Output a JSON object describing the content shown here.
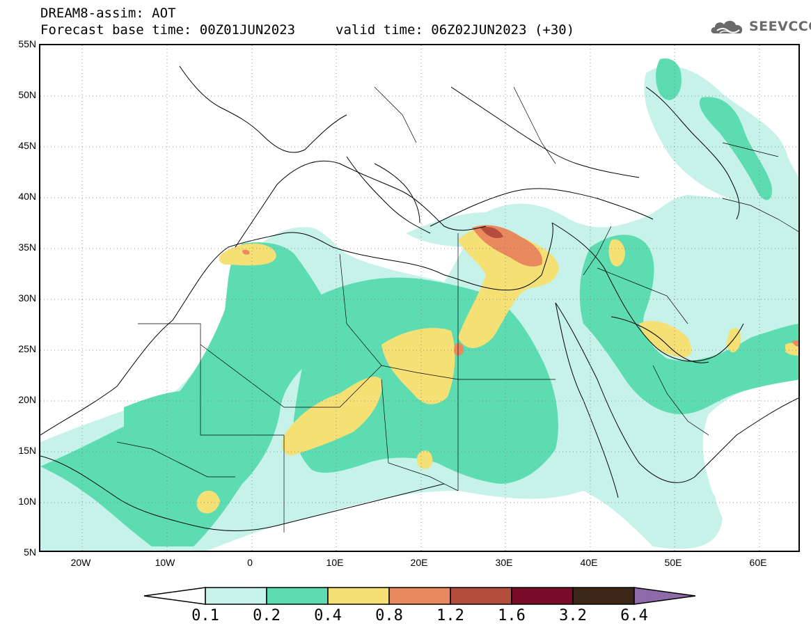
{
  "header": {
    "title_line1": "DREAM8-assim: AOT",
    "title_line2": "Forecast base time: 00Z01JUN2023",
    "valid_time": "valid time: 06Z02JUN2023 (+30)"
  },
  "logo": {
    "text": "SEEVCCC",
    "icon": "cloud-icon"
  },
  "map": {
    "lat_labels": [
      "55N",
      "50N",
      "45N",
      "40N",
      "35N",
      "30N",
      "25N",
      "20N",
      "15N",
      "10N",
      "5N"
    ],
    "lon_labels": [
      "20W",
      "10W",
      "0",
      "10E",
      "20E",
      "30E",
      "40E",
      "50E",
      "60E"
    ],
    "lat_range": [
      5,
      55
    ],
    "lon_range": [
      -25,
      65
    ],
    "grid": "dotted"
  },
  "colorbar": {
    "labels": [
      "0.1",
      "0.2",
      "0.4",
      "0.8",
      "1.2",
      "1.6",
      "3.2",
      "6.4"
    ],
    "colors": [
      "#c6f2ea",
      "#5ddcb2",
      "#f5e076",
      "#e88a5e",
      "#b34d3c",
      "#7a0a2a",
      "#3b2617",
      "#8f6aa8"
    ]
  }
}
